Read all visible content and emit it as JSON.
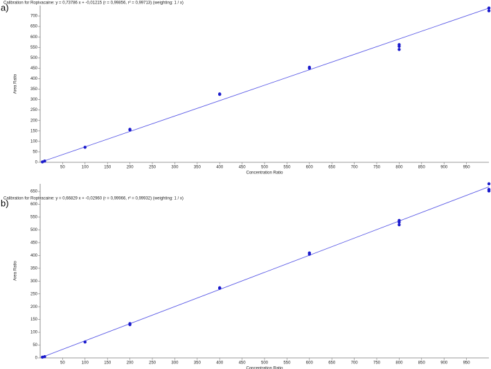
{
  "chart_data": [
    {
      "type": "scatter",
      "panel": "a)",
      "title": "Calibration for Ropivacaine: y = 0,73786 x + -0,01215 (r = 0,99856, r² = 0,99713) (weighting: 1 / x)",
      "xlabel": "Concentration Ratio",
      "ylabel": "Area Ratio",
      "color": "#1a1acc",
      "x": [
        5,
        10,
        100,
        200,
        200,
        400,
        400,
        600,
        600,
        800,
        800,
        800,
        1000,
        1000
      ],
      "values": [
        2,
        6,
        72,
        155,
        158,
        325,
        327,
        450,
        455,
        540,
        555,
        563,
        725,
        738
      ],
      "line": {
        "color": "#5a5ae6",
        "x": [
          5,
          1000
        ],
        "values": [
          3.7,
          737.8
        ]
      },
      "xlim": [
        0,
        1000
      ],
      "ylim": [
        0,
        750
      ],
      "xticks": [
        50,
        100,
        150,
        200,
        250,
        300,
        350,
        400,
        450,
        500,
        550,
        600,
        650,
        700,
        750,
        800,
        850,
        900,
        950
      ],
      "yticks": [
        0,
        50,
        100,
        150,
        200,
        250,
        300,
        350,
        400,
        450,
        500,
        550,
        600,
        650,
        700
      ]
    },
    {
      "type": "scatter",
      "panel": "b)",
      "title": "Calibration for Ropivacaine: y = 0,66829 x + -0,02960 (r = 0,99966, r² = 0,99932) (weighting: 1 / x)",
      "xlabel": "Concentration Ratio",
      "ylabel": "Area Ratio",
      "color": "#1a1acc",
      "x": [
        5,
        10,
        100,
        200,
        200,
        400,
        400,
        600,
        600,
        800,
        800,
        800,
        1000,
        1000,
        1000
      ],
      "values": [
        3,
        5,
        62,
        130,
        134,
        272,
        274,
        405,
        410,
        520,
        530,
        537,
        652,
        658,
        680
      ],
      "line": {
        "color": "#5a5ae6",
        "x": [
          5,
          1000
        ],
        "values": [
          3.3,
          668.3
        ]
      },
      "xlim": [
        0,
        1000
      ],
      "ylim": [
        0,
        680
      ],
      "xticks": [
        50,
        100,
        150,
        200,
        250,
        300,
        350,
        400,
        450,
        500,
        550,
        600,
        650,
        700,
        750,
        800,
        850,
        900,
        950
      ],
      "yticks": [
        0,
        50,
        100,
        150,
        200,
        250,
        300,
        350,
        400,
        450,
        500,
        550,
        600,
        650
      ]
    }
  ]
}
